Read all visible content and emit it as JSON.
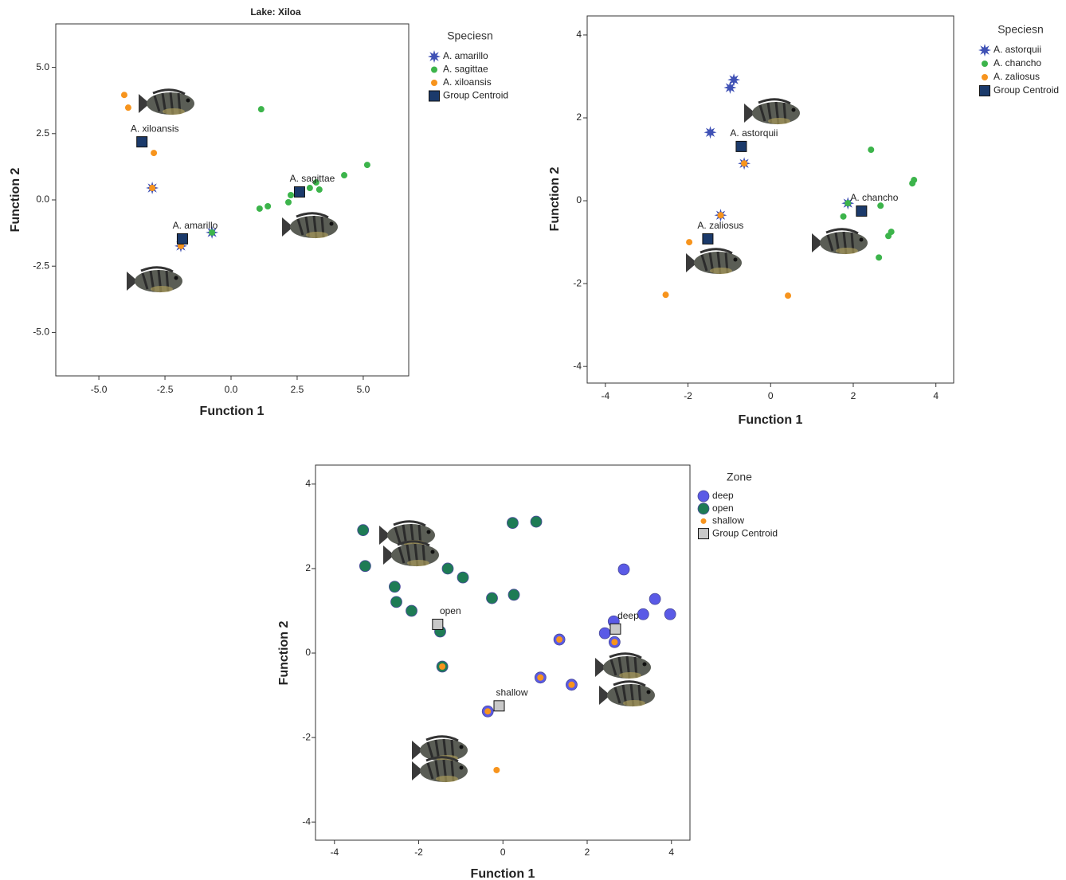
{
  "chart_data": [
    {
      "type": "scatter",
      "title": "Lake: Xiloa",
      "x_label": "Function 1",
      "y_label": "Function 2",
      "legend_title": "Speciesn",
      "xlim": [
        -6.63,
        6.72
      ],
      "ylim": [
        -6.64,
        6.64
      ],
      "xticks": [
        {
          "value": -5,
          "label": "-5.0"
        },
        {
          "value": -2.5,
          "label": "-2.5"
        },
        {
          "value": 0,
          "label": "0.0"
        },
        {
          "value": 2.5,
          "label": "2.5"
        },
        {
          "value": 5,
          "label": "5.0"
        }
      ],
      "yticks": [
        {
          "value": 5,
          "label": "5.0"
        },
        {
          "value": 2.5,
          "label": "2.5"
        },
        {
          "value": 0,
          "label": "0.0"
        },
        {
          "value": -2.5,
          "label": "-2.5"
        },
        {
          "value": -5,
          "label": "-5.0"
        }
      ],
      "series": [
        {
          "name": "A. amarillo",
          "marker": "star",
          "color": "#3f51b5",
          "x": [
            -2.98,
            -1.9,
            -0.72
          ],
          "values": [
            0.45,
            -1.74,
            -1.23
          ]
        },
        {
          "name": "A. sagittae",
          "marker": "dot",
          "color": "#3cb44b",
          "x": [
            1.14,
            1.08,
            1.39,
            2.17,
            2.26,
            2.98,
            3.22,
            3.34,
            4.28,
            5.15,
            -0.72
          ],
          "values": [
            3.42,
            -0.33,
            -0.24,
            -0.09,
            0.18,
            0.45,
            0.66,
            0.39,
            0.93,
            1.32,
            -1.23
          ]
        },
        {
          "name": "A. xiloansis",
          "marker": "dot",
          "color": "#f7941d",
          "x": [
            -4.04,
            -3.89,
            -2.92,
            -2.98,
            -1.9
          ],
          "values": [
            3.96,
            3.48,
            1.77,
            0.45,
            -1.74
          ]
        },
        {
          "name": "Group Centroid",
          "marker": "square",
          "color": "#1b3a6b",
          "x": [
            -3.37,
            -1.84,
            2.59
          ],
          "values": [
            2.19,
            -1.47,
            0.3
          ],
          "labels": [
            "A. xiloansis",
            "A. amarillo",
            "A. sagittae"
          ]
        }
      ]
    },
    {
      "type": "scatter",
      "x_label": "Function 1",
      "y_label": "Function 2",
      "legend_title": "Speciesn",
      "xlim": [
        -4.44,
        4.43
      ],
      "ylim": [
        -4.4,
        4.46
      ],
      "xticks": [
        -4,
        -2,
        0,
        2,
        4
      ],
      "yticks": [
        4,
        2,
        0,
        -2,
        -4
      ],
      "series": [
        {
          "name": "A. astorquii",
          "marker": "star",
          "color": "#3f51b5",
          "x": [
            -0.89,
            -0.98,
            -1.46,
            -0.64,
            -1.21,
            1.87
          ],
          "values": [
            2.92,
            2.73,
            1.65,
            0.9,
            -0.35,
            -0.06
          ]
        },
        {
          "name": "A. chancho",
          "marker": "dot",
          "color": "#3cb44b",
          "x": [
            2.43,
            3.47,
            3.43,
            2.66,
            1.76,
            2.92,
            2.85,
            2.62,
            1.87
          ],
          "values": [
            1.23,
            0.5,
            0.42,
            -0.12,
            -0.38,
            -0.75,
            -0.85,
            -1.37,
            -0.06
          ]
        },
        {
          "name": "A. zaliosus",
          "marker": "dot",
          "color": "#f7941d",
          "x": [
            -0.64,
            -1.21,
            -1.97,
            -2.54,
            0.42
          ],
          "values": [
            0.9,
            -0.35,
            -1.0,
            -2.27,
            -2.29
          ]
        },
        {
          "name": "Group Centroid",
          "marker": "square",
          "color": "#1b3a6b",
          "x": [
            -0.71,
            -1.52,
            2.2
          ],
          "values": [
            1.31,
            -0.92,
            -0.25
          ],
          "labels": [
            "A. astorquii",
            "A. zaliosus",
            "A. chancho"
          ]
        }
      ]
    },
    {
      "type": "scatter",
      "x_label": "Function 1",
      "y_label": "Function 2",
      "legend_title": "Zone",
      "xlim": [
        -4.45,
        4.44
      ],
      "ylim": [
        -4.43,
        4.45
      ],
      "xticks": [
        -4,
        -2,
        0,
        2,
        4
      ],
      "yticks": [
        4,
        2,
        0,
        -2,
        -4
      ],
      "series": [
        {
          "name": "deep",
          "marker": "large-dot",
          "color": "#5a5ae6",
          "x": [
            2.87,
            3.61,
            3.97,
            3.33,
            2.63,
            2.42,
            2.65,
            1.34,
            0.89,
            1.63,
            -0.36
          ],
          "values": [
            1.98,
            1.28,
            0.92,
            0.92,
            0.75,
            0.47,
            0.26,
            0.32,
            -0.58,
            -0.75,
            -1.38
          ]
        },
        {
          "name": "open",
          "marker": "large-dot",
          "color": "#1e7b55",
          "x": [
            -3.32,
            -3.27,
            -2.57,
            -2.53,
            -2.17,
            0.23,
            0.79,
            -1.31,
            -0.95,
            -0.26,
            0.26,
            -1.49,
            -1.44
          ],
          "values": [
            2.91,
            2.06,
            1.57,
            1.21,
            1.0,
            3.08,
            3.11,
            2.0,
            1.79,
            1.3,
            1.38,
            0.51,
            -0.32
          ]
        },
        {
          "name": "shallow",
          "marker": "small-dot",
          "color": "#f7941d",
          "x": [
            2.65,
            1.34,
            0.89,
            1.63,
            -0.36,
            -1.44,
            -0.15
          ],
          "values": [
            0.26,
            0.32,
            -0.58,
            -0.75,
            -1.38,
            -0.32,
            -2.77
          ]
        },
        {
          "name": "Group Centroid",
          "marker": "square",
          "color": "#c8c8c8",
          "x": [
            -1.55,
            2.67,
            -0.09
          ],
          "values": [
            0.68,
            0.57,
            -1.25
          ],
          "labels": [
            "open",
            "deep",
            "shallow"
          ]
        }
      ]
    }
  ]
}
